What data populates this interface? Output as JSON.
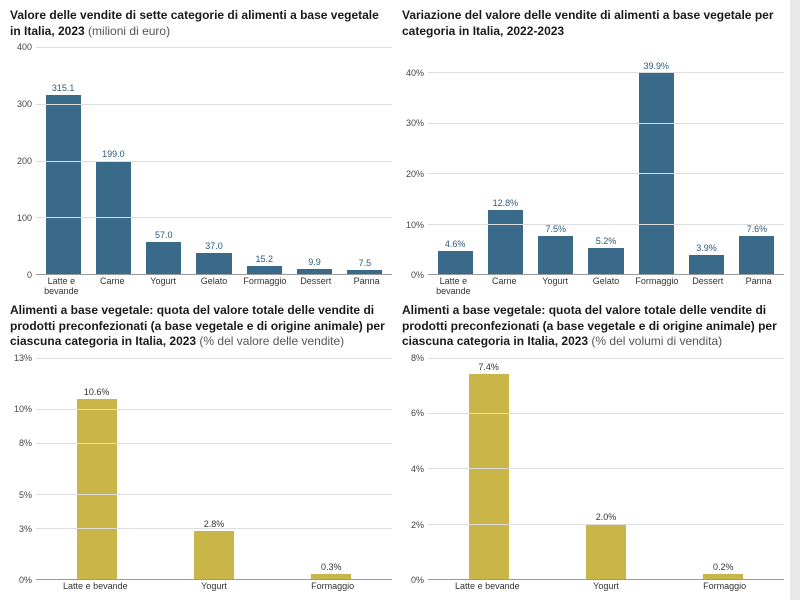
{
  "background_color": "#e8e8e8",
  "panel_bg": "#ffffff",
  "charts": [
    {
      "title_bold": "Valore delle vendite di sette categorie di alimenti a base vegetale in Italia, 2023",
      "title_sub": " (milioni di euro)",
      "type": "bar",
      "bar_color": "#3a6a8a",
      "label_color": "#2b5a7a",
      "ylim": [
        0,
        400
      ],
      "yticks": [
        0,
        100,
        200,
        300,
        400
      ],
      "categories": [
        "Latte e bevande",
        "Carne",
        "Yogurt",
        "Gelato",
        "Formaggio",
        "Dessert",
        "Panna"
      ],
      "values": [
        315.1,
        199.0,
        57.0,
        37.0,
        15.2,
        9.9,
        7.5
      ],
      "value_labels": [
        "315.1",
        "199.0",
        "57.0",
        "37.0",
        "15.2",
        "9.9",
        "7.5"
      ],
      "bar_width_pct": 70
    },
    {
      "title_bold": "Variazione del valore delle vendite di alimenti a base vegetale per categoria in Italia, 2022-2023",
      "title_sub": "",
      "type": "bar",
      "bar_color": "#3a6a8a",
      "label_color": "#2b5a7a",
      "ylim": [
        0,
        45
      ],
      "yticks": [
        0,
        10,
        20,
        30,
        40
      ],
      "ytick_labels": [
        "0%",
        "10%",
        "20%",
        "30%",
        "40%"
      ],
      "categories": [
        "Latte e bevande",
        "Carne",
        "Yogurt",
        "Gelato",
        "Formaggio",
        "Dessert",
        "Panna"
      ],
      "values": [
        4.6,
        12.8,
        7.5,
        5.2,
        39.9,
        3.9,
        7.6
      ],
      "value_labels": [
        "4.6%",
        "12.8%",
        "7.5%",
        "5.2%",
        "39.9%",
        "3.9%",
        "7.6%"
      ],
      "bar_width_pct": 70
    },
    {
      "title_bold": "Alimenti a base vegetale: quota del valore totale delle vendite di prodotti preconfezionati (a base vegetale e di origine animale) per ciascuna categoria in Italia, 2023",
      "title_sub": " (% del valore delle vendite)",
      "type": "bar",
      "bar_color": "#c9b548",
      "label_color": "#333333",
      "ylim": [
        0,
        13
      ],
      "yticks": [
        0,
        3,
        5,
        8,
        10,
        13
      ],
      "ytick_labels": [
        "0%",
        "3%",
        "5%",
        "8%",
        "10%",
        "13%"
      ],
      "categories": [
        "Latte e bevande",
        "Yogurt",
        "Formaggio"
      ],
      "values": [
        10.6,
        2.8,
        0.3
      ],
      "value_labels": [
        "10.6%",
        "2.8%",
        "0.3%"
      ],
      "bar_width_pct": 50
    },
    {
      "title_bold": "Alimenti a base vegetale: quota del valore totale delle vendite di prodotti preconfezionati (a base vegetale e di origine animale) per ciascuna categoria in Italia, 2023",
      "title_sub": " (% del volumi di vendita)",
      "type": "bar",
      "bar_color": "#c9b548",
      "label_color": "#333333",
      "ylim": [
        0,
        8
      ],
      "yticks": [
        0,
        2,
        4,
        6,
        8
      ],
      "ytick_labels": [
        "0%",
        "2%",
        "4%",
        "6%",
        "8%"
      ],
      "categories": [
        "Latte e bevande",
        "Yogurt",
        "Formaggio"
      ],
      "values": [
        7.4,
        2.0,
        0.2
      ],
      "value_labels": [
        "7.4%",
        "2.0%",
        "0.2%"
      ],
      "bar_width_pct": 50
    }
  ]
}
